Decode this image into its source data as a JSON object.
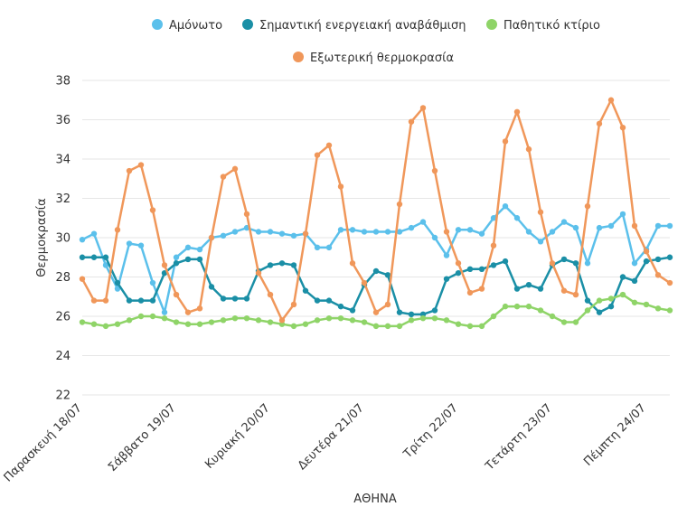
{
  "chart_data": {
    "type": "line",
    "xlabel": "ΑΘΗΝΑ",
    "ylabel": "Θερμοκρασία",
    "ylim": [
      22,
      38
    ],
    "yticks": [
      22,
      24,
      26,
      28,
      30,
      32,
      34,
      36,
      38
    ],
    "x_tick_labels": [
      "Παρασκευή 18/07",
      "Σάββατο 19/07",
      "Κυριακή 20/07",
      "Δευτέρα 21/07",
      "Τρίτη 22/07",
      "Τετάρτη 23/07",
      "Πέμπτη 24/07"
    ],
    "x_tick_indices": [
      0,
      8,
      16,
      24,
      32,
      40,
      48
    ],
    "grid": true,
    "legend_position": "top-center",
    "series": [
      {
        "name": "Αμόνωτο",
        "color": "#5bc0eb",
        "values": [
          29.9,
          30.2,
          28.6,
          27.4,
          29.7,
          29.6,
          27.7,
          26.2,
          29.0,
          29.5,
          29.4,
          30.0,
          30.1,
          30.3,
          30.5,
          30.3,
          30.3,
          30.2,
          30.1,
          30.2,
          29.5,
          29.5,
          30.4,
          30.4,
          30.3,
          30.3,
          30.3,
          30.3,
          30.5,
          30.8,
          30.0,
          29.1,
          30.4,
          30.4,
          30.2,
          31.0,
          31.6,
          31.0,
          30.3,
          29.8,
          30.3,
          30.8,
          30.5,
          28.7,
          30.5,
          30.6,
          31.2,
          28.7,
          29.4,
          30.6,
          30.6
        ]
      },
      {
        "name": "Σημαντική ενεργειακή αναβάθμιση",
        "color": "#1a8fa6",
        "values": [
          29.0,
          29.0,
          29.0,
          27.7,
          26.8,
          26.8,
          26.8,
          28.2,
          28.7,
          28.9,
          28.9,
          27.5,
          26.9,
          26.9,
          26.9,
          28.3,
          28.6,
          28.7,
          28.6,
          27.3,
          26.8,
          26.8,
          26.5,
          26.3,
          27.6,
          28.3,
          28.1,
          26.2,
          26.1,
          26.1,
          26.3,
          27.9,
          28.2,
          28.4,
          28.4,
          28.6,
          28.8,
          27.4,
          27.6,
          27.4,
          28.6,
          28.9,
          28.7,
          26.8,
          26.2,
          26.5,
          28.0,
          27.8,
          28.8,
          28.9,
          29.0
        ]
      },
      {
        "name": "Παθητικό κτίριο",
        "color": "#8fd468",
        "values": [
          25.7,
          25.6,
          25.5,
          25.6,
          25.8,
          26.0,
          26.0,
          25.9,
          25.7,
          25.6,
          25.6,
          25.7,
          25.8,
          25.9,
          25.9,
          25.8,
          25.7,
          25.6,
          25.5,
          25.6,
          25.8,
          25.9,
          25.9,
          25.8,
          25.7,
          25.5,
          25.5,
          25.5,
          25.8,
          25.9,
          25.9,
          25.8,
          25.6,
          25.5,
          25.5,
          26.0,
          26.5,
          26.5,
          26.5,
          26.3,
          26.0,
          25.7,
          25.7,
          26.3,
          26.8,
          26.9,
          27.1,
          26.7,
          26.6,
          26.4,
          26.3
        ]
      },
      {
        "name": "Εξωτερική θερμοκρασία",
        "color": "#f0975a",
        "values": [
          27.9,
          26.8,
          26.8,
          30.4,
          33.4,
          33.7,
          31.4,
          28.6,
          27.1,
          26.2,
          26.4,
          30.0,
          33.1,
          33.5,
          31.2,
          28.2,
          27.1,
          25.8,
          26.6,
          30.2,
          34.2,
          34.7,
          32.6,
          28.7,
          27.7,
          26.2,
          26.6,
          31.7,
          35.9,
          36.6,
          33.4,
          30.3,
          28.7,
          27.2,
          27.4,
          29.6,
          34.9,
          36.4,
          34.5,
          31.3,
          28.7,
          27.3,
          27.1,
          31.6,
          35.8,
          37.0,
          35.6,
          30.6,
          29.3,
          28.1,
          27.7
        ]
      }
    ]
  }
}
